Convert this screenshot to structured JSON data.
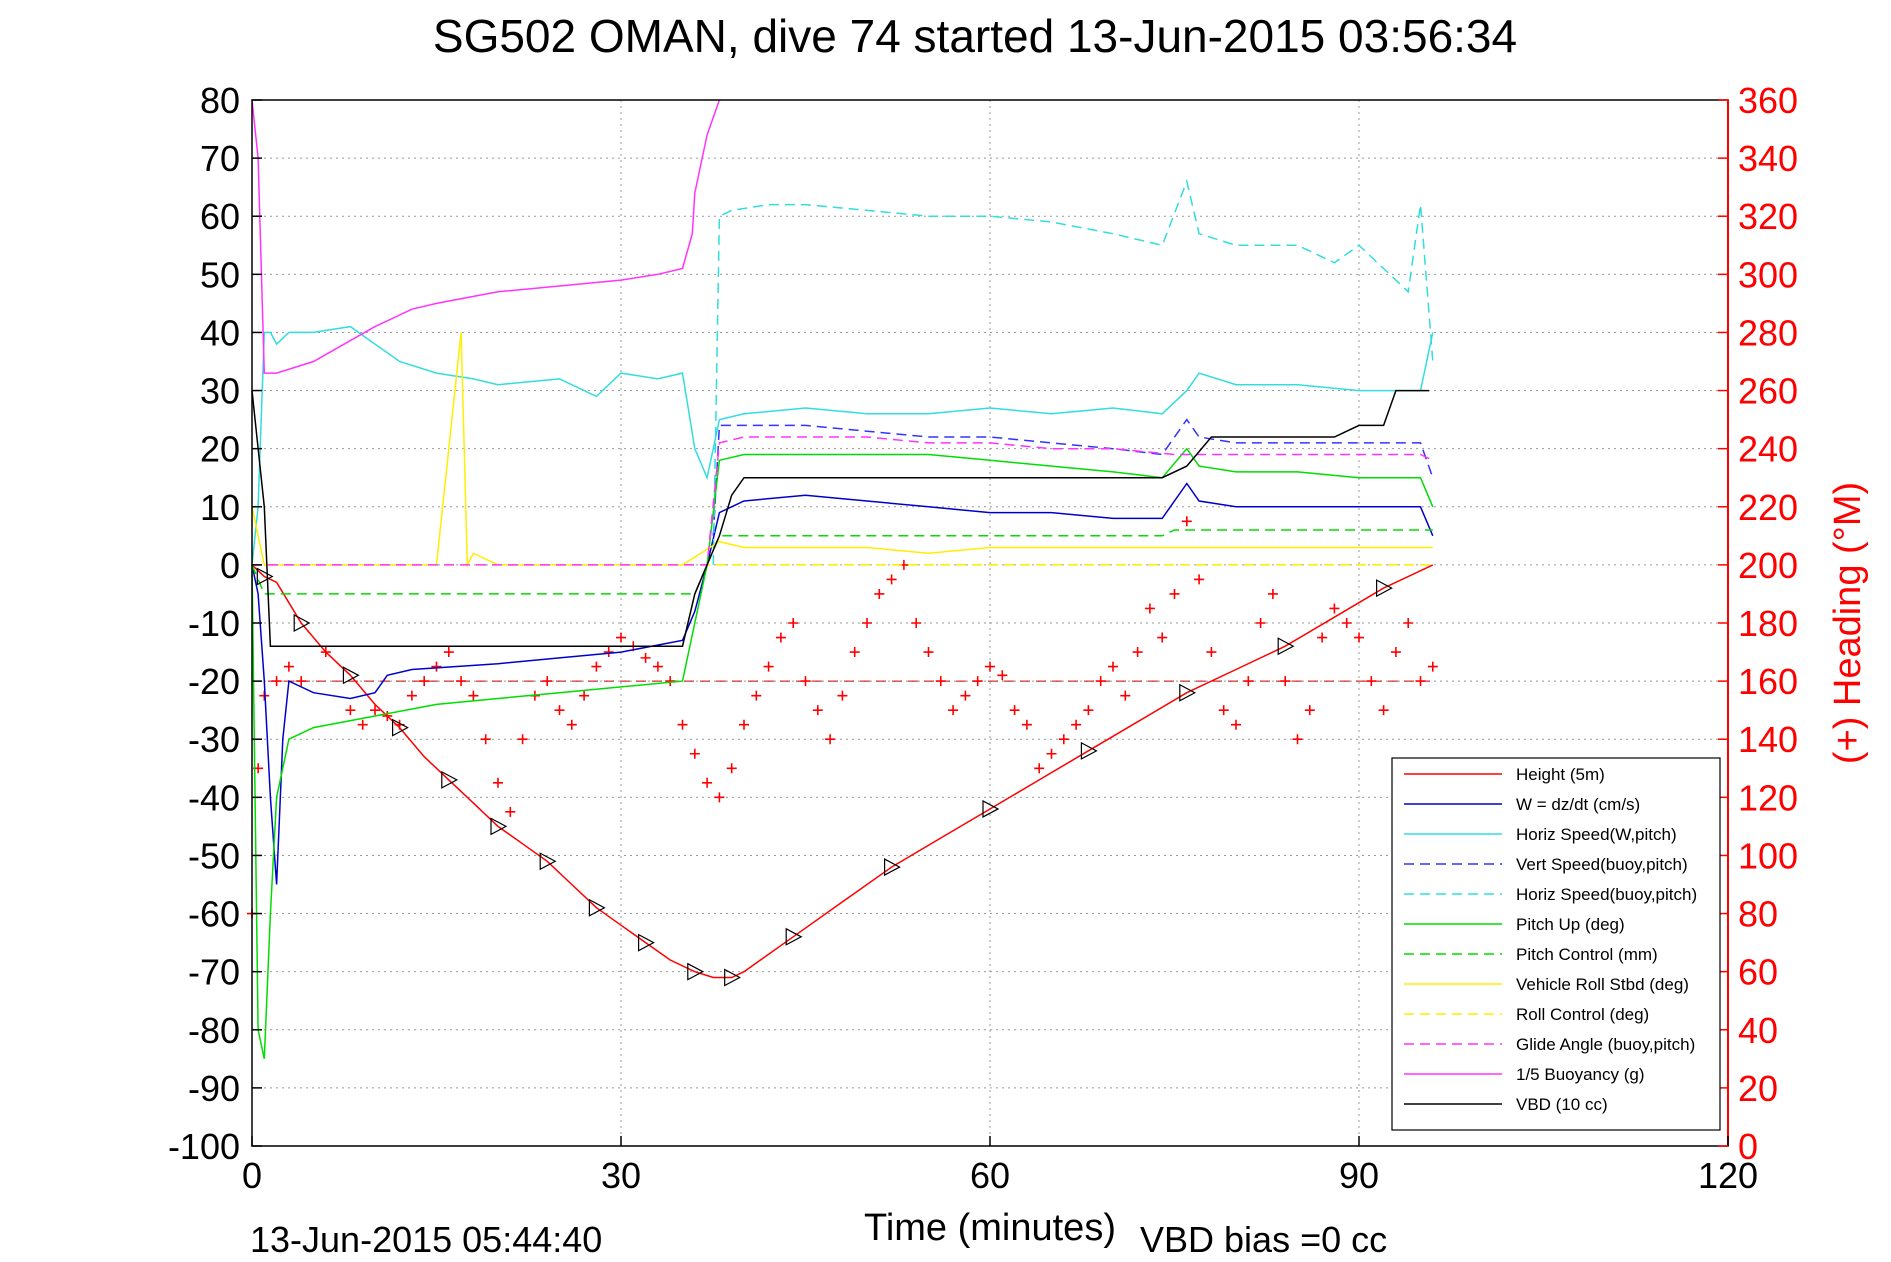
{
  "chart_data": {
    "type": "line",
    "title": "SG502 OMAN, dive 74 started 13-Jun-2015 03:56:34",
    "xlabel": "Time (minutes)",
    "ylabel": "",
    "y2label": "(+) Heading (°M)",
    "footer_left": "13-Jun-2015 05:44:40",
    "footer_right": "VBD bias =0 cc",
    "xlim": [
      0,
      120
    ],
    "ylim": [
      -100,
      80
    ],
    "y2lim": [
      0,
      360
    ],
    "xticks": [
      0,
      30,
      60,
      90,
      120
    ],
    "yticks": [
      80,
      70,
      60,
      50,
      40,
      30,
      20,
      10,
      0,
      -10,
      -20,
      -30,
      -40,
      -50,
      -60,
      -70,
      -80,
      -90,
      -100
    ],
    "y2ticks": [
      360,
      340,
      320,
      300,
      280,
      260,
      240,
      220,
      200,
      180,
      160,
      140,
      120,
      100,
      80,
      60,
      40,
      20,
      0
    ],
    "grid": true,
    "legend_position": "bottom-right",
    "colors": {
      "red": "#ff0000",
      "blue": "#0000cc",
      "cyan": "#33dddd",
      "green": "#00dd00",
      "yellow": "#ffee00",
      "magenta": "#ff33ff",
      "black": "#000000"
    },
    "series": [
      {
        "name": "Height (5m)",
        "color": "#ff0000",
        "dash": "solid",
        "x": [
          0,
          1,
          2,
          4,
          6,
          8,
          10,
          12,
          14,
          16,
          18,
          20,
          22,
          24,
          26,
          28,
          30,
          32,
          34,
          36,
          37.5,
          39,
          40,
          44,
          48,
          52,
          56,
          60,
          64,
          68,
          72,
          76,
          80,
          84,
          88,
          92,
          96
        ],
        "y": [
          0,
          -2,
          -3,
          -10,
          -15,
          -19,
          -24,
          -28,
          -33,
          -37,
          -41,
          -45,
          -48,
          -51,
          -55,
          -59,
          -62,
          -65,
          -68,
          -70,
          -71,
          -71,
          -70,
          -64,
          -58,
          -52,
          -47,
          -42,
          -37,
          -32,
          -27,
          -22,
          -18,
          -14,
          -9,
          -4,
          0
        ]
      },
      {
        "name": "W = dz/dt (cm/s)",
        "color": "#0000cc",
        "dash": "solid",
        "x": [
          0,
          0.5,
          1,
          1.5,
          2,
          2.5,
          3,
          5,
          8,
          10,
          11,
          13,
          20,
          25,
          30,
          35,
          36,
          37,
          38,
          40,
          45,
          50,
          55,
          60,
          65,
          70,
          74,
          76,
          77,
          80,
          85,
          90,
          95,
          96
        ],
        "y": [
          0,
          -5,
          -20,
          -40,
          -55,
          -30,
          -20,
          -22,
          -23,
          -22,
          -19,
          -18,
          -17,
          -16,
          -15,
          -13,
          -8,
          0,
          9,
          11,
          12,
          11,
          10,
          9,
          9,
          8,
          8,
          14,
          11,
          10,
          10,
          10,
          10,
          5
        ]
      },
      {
        "name": "Horiz Speed(W,pitch)",
        "color": "#33dddd",
        "dash": "solid",
        "x": [
          0,
          0.5,
          1,
          1.5,
          2,
          3,
          5,
          8,
          10,
          12,
          15,
          18,
          20,
          25,
          28,
          30,
          33,
          35,
          36,
          37,
          38,
          40,
          45,
          50,
          55,
          60,
          65,
          70,
          74,
          76,
          77,
          80,
          85,
          90,
          95,
          96
        ],
        "y": [
          0,
          10,
          40,
          40,
          38,
          40,
          40,
          41,
          38,
          35,
          33,
          32,
          31,
          32,
          29,
          33,
          32,
          33,
          20,
          15,
          25,
          26,
          27,
          26,
          26,
          27,
          26,
          27,
          26,
          30,
          33,
          31,
          31,
          30,
          30,
          40
        ]
      },
      {
        "name": "Vert Speed(buoy,pitch)",
        "color": "#3333ff",
        "dash": "dashed",
        "x": [
          37.5,
          38,
          40,
          45,
          50,
          55,
          60,
          65,
          70,
          74,
          76,
          77,
          80,
          85,
          90,
          95,
          96
        ],
        "y": [
          5,
          24,
          24,
          24,
          23,
          22,
          22,
          21,
          20,
          19,
          25,
          22,
          21,
          21,
          21,
          21,
          15
        ]
      },
      {
        "name": "Horiz Speed(buoy,pitch)",
        "color": "#33dddd",
        "dash": "dashed",
        "x": [
          37.5,
          38,
          39,
          42,
          45,
          50,
          55,
          60,
          65,
          70,
          74,
          76,
          77,
          80,
          85,
          88,
          90,
          94,
          95,
          96
        ],
        "y": [
          0,
          60,
          61,
          62,
          62,
          61,
          60,
          60,
          59,
          57,
          55,
          66,
          57,
          55,
          55,
          52,
          55,
          47,
          62,
          35
        ]
      },
      {
        "name": "Pitch Up (deg)",
        "color": "#00dd00",
        "dash": "solid",
        "x": [
          0,
          0.5,
          1,
          1.5,
          2,
          3,
          5,
          10,
          15,
          20,
          25,
          30,
          35,
          36,
          37,
          38,
          40,
          45,
          50,
          55,
          60,
          65,
          70,
          74,
          76,
          77,
          80,
          85,
          90,
          95,
          96
        ],
        "y": [
          0,
          -80,
          -85,
          -60,
          -40,
          -30,
          -28,
          -26,
          -24,
          -23,
          -22,
          -21,
          -20,
          -10,
          0,
          18,
          19,
          19,
          19,
          19,
          18,
          17,
          16,
          15,
          20,
          17,
          16,
          16,
          15,
          15,
          10
        ]
      },
      {
        "name": "Pitch Control (mm)",
        "color": "#00dd00",
        "dash": "dashed",
        "x": [
          0,
          1,
          2,
          36,
          37,
          38,
          60,
          74,
          75,
          96
        ],
        "y": [
          0,
          -5,
          -5,
          -5,
          0,
          5,
          5,
          5,
          6,
          6
        ]
      },
      {
        "name": "Vehicle Roll Stbd (deg)",
        "color": "#ffee00",
        "dash": "solid",
        "x": [
          0,
          1,
          2,
          5,
          10,
          15,
          17,
          17.5,
          18,
          20,
          25,
          30,
          35,
          38,
          40,
          45,
          50,
          55,
          60,
          65,
          70,
          75,
          80,
          85,
          90,
          95,
          96
        ],
        "y": [
          10,
          0,
          0,
          0,
          0,
          0,
          40,
          0,
          2,
          0,
          0,
          0,
          0,
          4,
          3,
          3,
          3,
          2,
          3,
          3,
          3,
          3,
          3,
          3,
          3,
          3,
          3
        ]
      },
      {
        "name": "Roll Control (deg)",
        "color": "#ffee00",
        "dash": "dashed",
        "x": [
          0,
          96
        ],
        "y": [
          0,
          0
        ]
      },
      {
        "name": "Glide Angle (buoy,pitch)",
        "color": "#ff33ff",
        "dash": "dashed",
        "x": [
          0,
          37,
          38,
          40,
          45,
          50,
          55,
          60,
          65,
          70,
          75,
          80,
          85,
          90,
          95,
          96
        ],
        "y": [
          0,
          0,
          21,
          22,
          22,
          22,
          21,
          21,
          20,
          20,
          19,
          19,
          19,
          19,
          19,
          18
        ]
      },
      {
        "name": "1/5 Buoyancy (g)",
        "color": "#ff33ff",
        "dash": "solid",
        "x": [
          0,
          0.5,
          1,
          2,
          5,
          10,
          13,
          15,
          20,
          25,
          30,
          33,
          35,
          35.8,
          36,
          37,
          38
        ],
        "y": [
          80,
          70,
          33,
          33,
          35,
          41,
          44,
          45,
          47,
          48,
          49,
          50,
          51,
          57,
          64,
          74,
          80
        ]
      },
      {
        "name": "VBD (10 cc)",
        "color": "#000000",
        "dash": "solid",
        "x": [
          0,
          1,
          1.5,
          10,
          20,
          30,
          35,
          36,
          38,
          39,
          40,
          50,
          60,
          74,
          76,
          78,
          80,
          88,
          90,
          92,
          93,
          94,
          95.7
        ],
        "y": [
          30,
          10,
          -14,
          -14,
          -14,
          -14,
          -14,
          -5,
          5,
          12,
          15,
          15,
          15,
          15,
          17,
          22,
          22,
          22,
          24,
          24,
          30,
          30,
          30
        ]
      }
    ],
    "heading": {
      "name": "Heading (°M)",
      "color": "#ff0000",
      "marker": "+",
      "axis": "right",
      "x": [
        0,
        0.5,
        1,
        2,
        3,
        4,
        6,
        8,
        9,
        10,
        11,
        12,
        13,
        14,
        15,
        16,
        17,
        18,
        19,
        20,
        21,
        22,
        23,
        24,
        25,
        26,
        27,
        28,
        29,
        30,
        31,
        32,
        33,
        34,
        35,
        36,
        37,
        38,
        39,
        40,
        41,
        42,
        43,
        44,
        45,
        46,
        47,
        48,
        49,
        50,
        51,
        52,
        53,
        54,
        55,
        56,
        57,
        58,
        59,
        60,
        61,
        62,
        63,
        64,
        65,
        66,
        67,
        68,
        69,
        70,
        71,
        72,
        73,
        74,
        75,
        76,
        77,
        78,
        79,
        80,
        81,
        82,
        83,
        84,
        85,
        86,
        87,
        88,
        89,
        90,
        91,
        92,
        93,
        94,
        95,
        96
      ],
      "y": [
        80,
        130,
        155,
        160,
        165,
        160,
        170,
        150,
        145,
        150,
        148,
        145,
        155,
        160,
        165,
        170,
        160,
        155,
        140,
        125,
        115,
        140,
        155,
        160,
        150,
        145,
        155,
        165,
        170,
        175,
        172,
        168,
        165,
        160,
        145,
        135,
        125,
        120,
        130,
        145,
        155,
        165,
        175,
        180,
        160,
        150,
        140,
        155,
        170,
        180,
        190,
        195,
        200,
        180,
        170,
        160,
        150,
        155,
        160,
        165,
        162,
        150,
        145,
        130,
        135,
        140,
        145,
        150,
        160,
        165,
        155,
        170,
        185,
        175,
        190,
        215,
        195,
        170,
        150,
        145,
        160,
        180,
        190,
        160,
        140,
        150,
        175,
        185,
        180,
        175,
        160,
        150,
        170,
        180,
        160,
        165
      ]
    }
  }
}
